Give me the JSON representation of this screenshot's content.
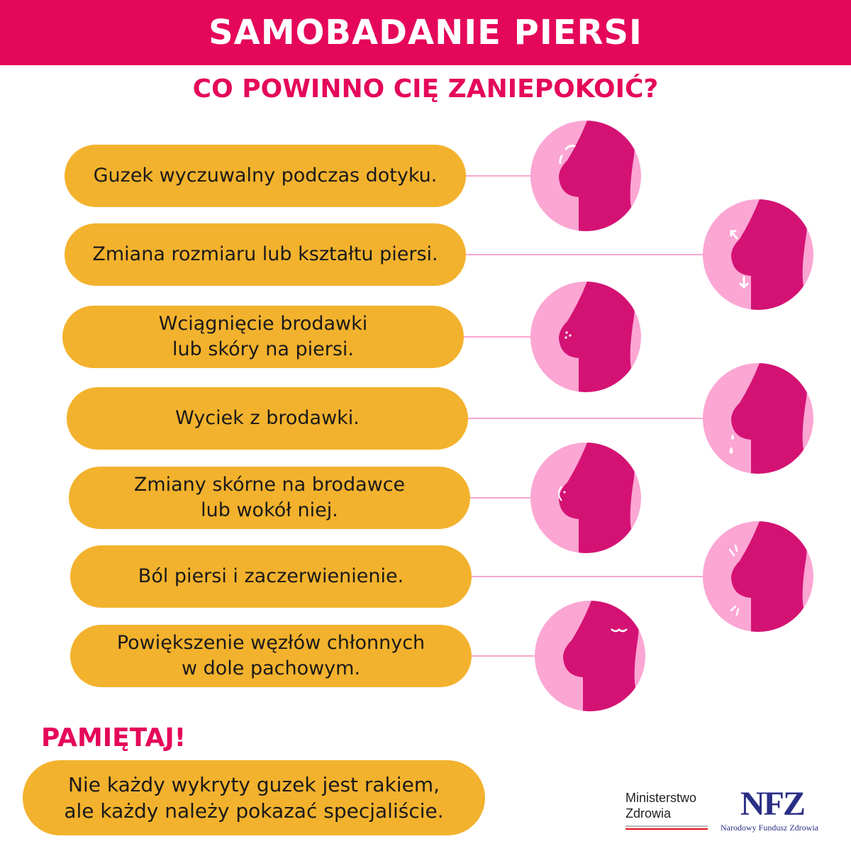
{
  "header": {
    "title": "SAMOBADANIE PIERSI"
  },
  "subtitle": "CO POWINNO CIĘ ZANIEPOKOIĆ?",
  "symptoms": [
    {
      "text": "Guzek wyczuwalny podczas dotyku.",
      "icon": "breast-lump-icon"
    },
    {
      "text": "Zmiana rozmiaru lub kształtu piersi.",
      "icon": "breast-size-change-icon"
    },
    {
      "text": "Wciągnięcie brodawki\nlub skóry na piersi.",
      "icon": "nipple-retraction-icon"
    },
    {
      "text": "Wyciek z brodawki.",
      "icon": "nipple-discharge-icon"
    },
    {
      "text": "Zmiany skórne na brodawce\nlub wokół niej.",
      "icon": "nipple-skin-change-icon"
    },
    {
      "text": "Ból piersi i zaczerwienienie.",
      "icon": "breast-pain-icon"
    },
    {
      "text": "Powiększenie węzłów chłonnych\nw dole pachowym.",
      "icon": "lymph-node-icon"
    }
  ],
  "remember": {
    "title": "PAMIĘTAJ!",
    "text": "Nie każdy wykryty guzek jest rakiem,\nale każdy należy pokazać specjaliście."
  },
  "logos": {
    "ministry": "Ministerstwo\nZdrowia",
    "nfz": "NFZ",
    "nfz_full": "Narodowy Fundusz Zdrowia"
  },
  "colors": {
    "brand": "#e5075a",
    "pill": "#f3b22d",
    "circle_light": "#fba6d3",
    "circle_dark": "#d41274"
  }
}
